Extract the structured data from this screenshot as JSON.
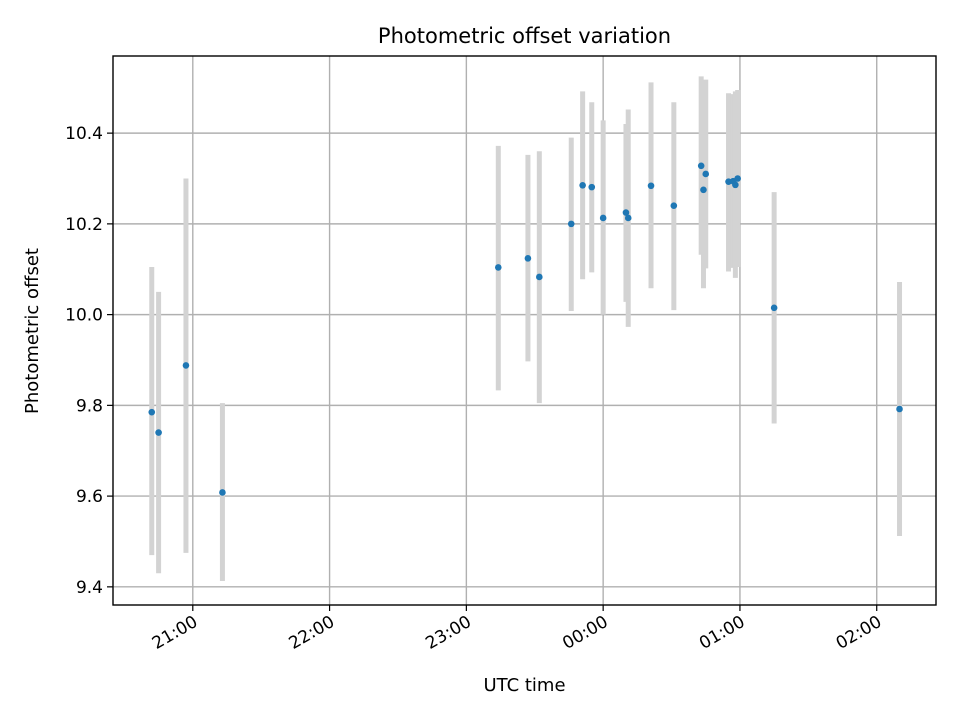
{
  "chart_data": {
    "type": "scatter",
    "title": "Photometric offset variation",
    "xlabel": "UTC time",
    "ylabel": "Photometric offset",
    "x_tick_labels": [
      "21:00",
      "22:00",
      "23:00",
      "00:00",
      "01:00",
      "02:00"
    ],
    "y_tick_labels": [
      "9.4",
      "9.6",
      "9.8",
      "10.0",
      "10.2",
      "10.4"
    ],
    "y_ticks": [
      9.4,
      9.6,
      9.8,
      10.0,
      10.2,
      10.4
    ],
    "xlim_utc": [
      "20:25",
      "02:26"
    ],
    "ylim": [
      9.36,
      10.57
    ],
    "grid": true,
    "marker_color": "#1f77b4",
    "errorbar_color": "#d3d3d3",
    "points": [
      {
        "t": "20:42",
        "y": 9.785,
        "lo": 9.47,
        "hi": 10.105
      },
      {
        "t": "20:45",
        "y": 9.74,
        "lo": 9.43,
        "hi": 10.05
      },
      {
        "t": "20:57",
        "y": 9.888,
        "lo": 9.475,
        "hi": 10.3
      },
      {
        "t": "21:13",
        "y": 9.608,
        "lo": 9.413,
        "hi": 9.805
      },
      {
        "t": "23:14",
        "y": 10.104,
        "lo": 9.833,
        "hi": 10.372
      },
      {
        "t": "23:27",
        "y": 10.124,
        "lo": 9.897,
        "hi": 10.352
      },
      {
        "t": "23:32",
        "y": 10.083,
        "lo": 9.805,
        "hi": 10.36
      },
      {
        "t": "23:46",
        "y": 10.2,
        "lo": 10.008,
        "hi": 10.39
      },
      {
        "t": "23:51",
        "y": 10.285,
        "lo": 10.078,
        "hi": 10.492
      },
      {
        "t": "23:55",
        "y": 10.281,
        "lo": 10.093,
        "hi": 10.468
      },
      {
        "t": "00:00",
        "y": 10.213,
        "lo": 10.0,
        "hi": 10.428
      },
      {
        "t": "00:10",
        "y": 10.225,
        "lo": 10.028,
        "hi": 10.42
      },
      {
        "t": "00:11",
        "y": 10.213,
        "lo": 9.973,
        "hi": 10.452
      },
      {
        "t": "00:21",
        "y": 10.284,
        "lo": 10.058,
        "hi": 10.512
      },
      {
        "t": "00:31",
        "y": 10.24,
        "lo": 10.01,
        "hi": 10.468
      },
      {
        "t": "00:43",
        "y": 10.328,
        "lo": 10.132,
        "hi": 10.525
      },
      {
        "t": "00:44",
        "y": 10.275,
        "lo": 10.058,
        "hi": 10.492
      },
      {
        "t": "00:45",
        "y": 10.31,
        "lo": 10.102,
        "hi": 10.518
      },
      {
        "t": "00:55",
        "y": 10.293,
        "lo": 10.095,
        "hi": 10.488
      },
      {
        "t": "00:57",
        "y": 10.294,
        "lo": 10.103,
        "hi": 10.486
      },
      {
        "t": "00:58",
        "y": 10.286,
        "lo": 10.081,
        "hi": 10.492
      },
      {
        "t": "00:59",
        "y": 10.3,
        "lo": 10.105,
        "hi": 10.495
      },
      {
        "t": "01:15",
        "y": 10.015,
        "lo": 9.76,
        "hi": 10.27
      },
      {
        "t": "02:10",
        "y": 9.792,
        "lo": 9.512,
        "hi": 10.072
      }
    ]
  }
}
